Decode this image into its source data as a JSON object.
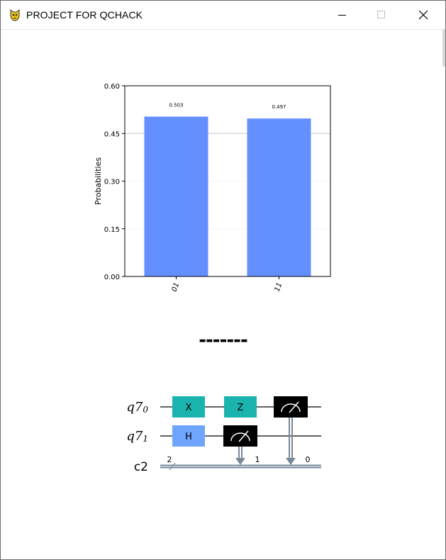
{
  "window": {
    "title": "PROJECT FOR QCHACK",
    "icon": "python-icon",
    "controls": [
      "minimize-icon",
      "maximize-icon",
      "close-icon"
    ]
  },
  "chart_data": {
    "type": "bar",
    "categories": [
      "01",
      "11"
    ],
    "values": [
      0.503,
      0.497
    ],
    "data_labels": [
      "0.503",
      "0.497"
    ],
    "title": "",
    "xlabel": "",
    "ylabel": "Probabilities",
    "ylim": [
      0,
      0.6
    ],
    "yticks": [
      "0.00",
      "0.15",
      "0.30",
      "0.45",
      "0.60"
    ],
    "reference_line": 0.45,
    "bar_color": "#648fff",
    "grid": true
  },
  "separator": "-------",
  "circuit": {
    "qubits": [
      {
        "name": "q7",
        "sub": "0"
      },
      {
        "name": "q7",
        "sub": "1"
      }
    ],
    "classical": {
      "name": "c2",
      "size": "2"
    },
    "gates": [
      {
        "label": "X",
        "qubit": 0,
        "color": "#1ab3ad"
      },
      {
        "label": "Z",
        "qubit": 0,
        "color": "#1ab3ad"
      },
      {
        "label": "H",
        "qubit": 1,
        "color": "#6fa4ff"
      }
    ],
    "measures": [
      {
        "qubit": 1,
        "bit": "1"
      },
      {
        "qubit": 0,
        "bit": "0"
      }
    ],
    "classical_color": "#778899"
  }
}
